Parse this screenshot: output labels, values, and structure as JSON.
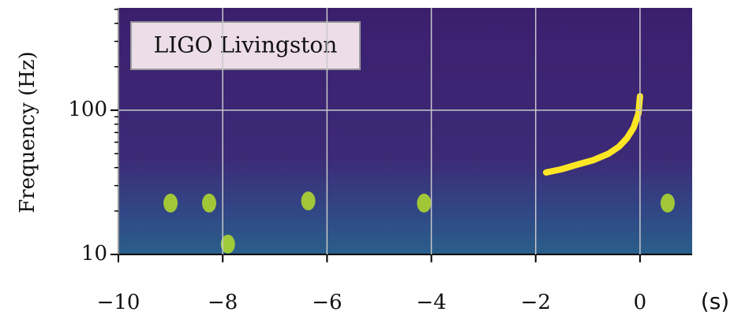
{
  "chart_data": {
    "type": "spectrogram",
    "ylabel": "Frequency (Hz)",
    "xlabel": "(s)",
    "annotation": "LIGO Livingston",
    "xlim": [
      -10,
      1
    ],
    "ylim": [
      10,
      512
    ],
    "log_y": true,
    "grid": true,
    "xticks": [
      {
        "value": -10,
        "label": "−10"
      },
      {
        "value": -8,
        "label": "−8"
      },
      {
        "value": -6,
        "label": "−6"
      },
      {
        "value": -4,
        "label": "−4"
      },
      {
        "value": -2,
        "label": "−2"
      },
      0
    ],
    "yticks": [
      10,
      100
    ],
    "yminorticks": [
      20,
      30,
      40,
      50,
      60,
      70,
      80,
      90,
      200,
      300,
      400,
      500
    ],
    "chirp": {
      "color": "#fde725",
      "x": [
        -1.8,
        -1.5,
        -1.2,
        -0.9,
        -0.6,
        -0.4,
        -0.25,
        -0.12,
        -0.03,
        0.0
      ],
      "y": [
        37,
        39,
        42,
        45,
        50,
        56,
        64,
        76,
        95,
        125
      ]
    },
    "blobs": {
      "color": "#b5de2b",
      "x": [
        -9.0,
        -8.26,
        -6.36,
        -4.14,
        -7.9,
        0.53
      ],
      "y": [
        22.7,
        22.7,
        23.5,
        22.7,
        11.8,
        22.7
      ]
    }
  }
}
